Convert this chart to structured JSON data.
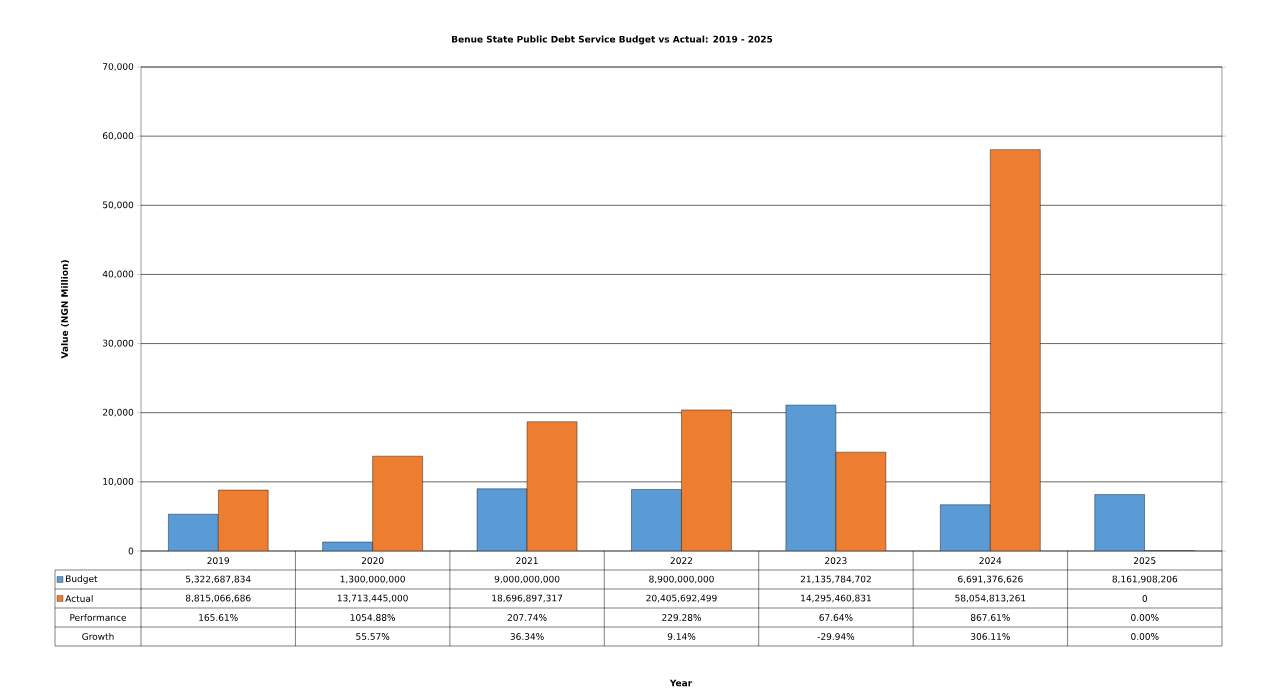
{
  "chart_data": {
    "type": "bar",
    "title": "Benue State Public Debt Service Budget vs Actual: 2019   - 2025",
    "ylabel": "Value (NGN Million)",
    "categories": [
      "2019",
      "2020",
      "2021",
      "2022",
      "2023",
      "2024",
      "2025"
    ],
    "series": [
      {
        "name": "Budget",
        "color": "#5b9bd5",
        "values": [
          5322.687834,
          1300,
          9000,
          8900,
          21135.784702,
          6691.376626,
          8161.908206
        ]
      },
      {
        "name": "Actual",
        "color": "#ed7d31",
        "values": [
          8815.066686,
          13713.445,
          18696.897317,
          20405.692499,
          14295.460831,
          58054.813261,
          0
        ]
      }
    ],
    "ylim": [
      0,
      70000
    ],
    "yticks": [
      0,
      {
        "value": 10000,
        "label": "10,000"
      },
      {
        "value": 20000,
        "label": "20,000"
      },
      {
        "value": 30000,
        "label": "30,000"
      },
      {
        "value": 40000,
        "label": "40,000"
      },
      {
        "value": 50000,
        "label": "50,000"
      },
      {
        "value": 60000,
        "label": "60,000"
      },
      {
        "value": 70000,
        "label": "70,000"
      }
    ],
    "grid": "y",
    "legend": "bottom",
    "annotations": [
      "5,322,687,834",
      "1,300,000,000",
      "9,000,000,000",
      "8,900,000,000",
      "21,135,784,702",
      "6,691,376,626",
      "8,161,908,206",
      "8,815,066,686",
      "13,713,445,000",
      "18,696,897,317",
      "20,405,692,499",
      "14,295,460,831",
      "58,054,813,261",
      "0",
      "Performance",
      "165.61%",
      "1054.88%",
      "207.74%",
      "229.28%",
      "67.64%",
      "867.61%",
      "0.00%",
      "Growth",
      "55.57%",
      "36.34%",
      "9.14%",
      "-29.94%",
      "306.11%",
      "0.00%",
      "Year"
    ]
  }
}
